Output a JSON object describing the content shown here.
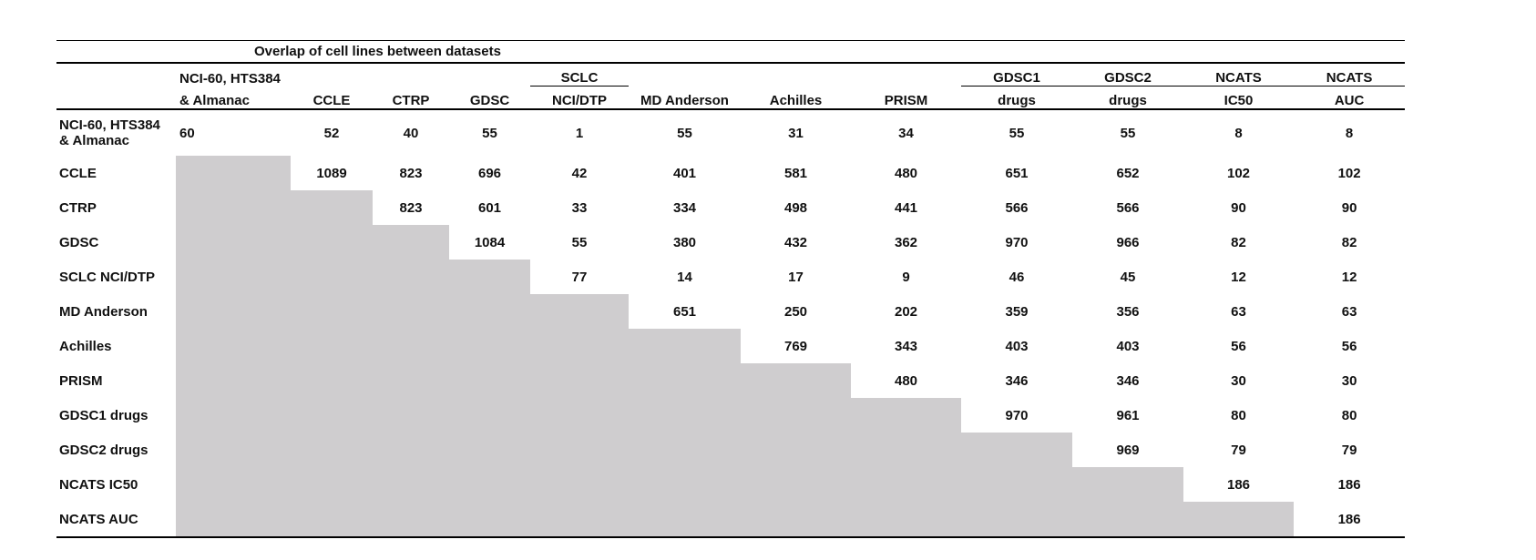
{
  "table": {
    "title": "Overlap of cell lines between datasets",
    "columns": [
      {
        "lines": [
          "NCI-60, HTS384",
          "& Almanac"
        ]
      },
      {
        "lines": [
          "CCLE"
        ]
      },
      {
        "lines": [
          "CTRP"
        ]
      },
      {
        "lines": [
          "GDSC"
        ]
      },
      {
        "lines": [
          "SCLC",
          "NCI/DTP"
        ],
        "rule": true
      },
      {
        "lines": [
          "MD Anderson"
        ]
      },
      {
        "lines": [
          "Achilles"
        ]
      },
      {
        "lines": [
          "PRISM"
        ]
      },
      {
        "lines": [
          "GDSC1",
          "drugs"
        ],
        "rule": true
      },
      {
        "lines": [
          "GDSC2",
          "drugs"
        ],
        "rule": true
      },
      {
        "lines": [
          "NCATS",
          "IC50"
        ],
        "rule": true
      },
      {
        "lines": [
          "NCATS",
          "AUC"
        ],
        "rule": true
      }
    ],
    "rows": [
      {
        "label": [
          "NCI-60, HTS384",
          "& Almanac"
        ],
        "values": [
          60,
          52,
          40,
          55,
          1,
          55,
          31,
          34,
          55,
          55,
          8,
          8
        ]
      },
      {
        "label": [
          "CCLE"
        ],
        "values": [
          1089,
          823,
          696,
          42,
          401,
          581,
          480,
          651,
          652,
          102,
          102
        ]
      },
      {
        "label": [
          "CTRP"
        ],
        "values": [
          823,
          601,
          33,
          334,
          498,
          441,
          566,
          566,
          90,
          90
        ]
      },
      {
        "label": [
          "GDSC"
        ],
        "values": [
          1084,
          55,
          380,
          432,
          362,
          970,
          966,
          82,
          82
        ]
      },
      {
        "label": [
          "SCLC NCI/DTP"
        ],
        "values": [
          77,
          14,
          17,
          9,
          46,
          45,
          12,
          12
        ]
      },
      {
        "label": [
          "MD Anderson"
        ],
        "values": [
          651,
          250,
          202,
          359,
          356,
          63,
          63
        ]
      },
      {
        "label": [
          "Achilles"
        ],
        "values": [
          769,
          343,
          403,
          403,
          56,
          56
        ]
      },
      {
        "label": [
          "PRISM"
        ],
        "values": [
          480,
          346,
          346,
          30,
          30
        ]
      },
      {
        "label": [
          "GDSC1 drugs"
        ],
        "values": [
          970,
          961,
          80,
          80
        ]
      },
      {
        "label": [
          "GDSC2 drugs"
        ],
        "values": [
          969,
          79,
          79
        ]
      },
      {
        "label": [
          "NCATS IC50"
        ],
        "values": [
          186,
          186
        ]
      },
      {
        "label": [
          "NCATS AUC"
        ],
        "values": [
          186
        ]
      }
    ]
  }
}
